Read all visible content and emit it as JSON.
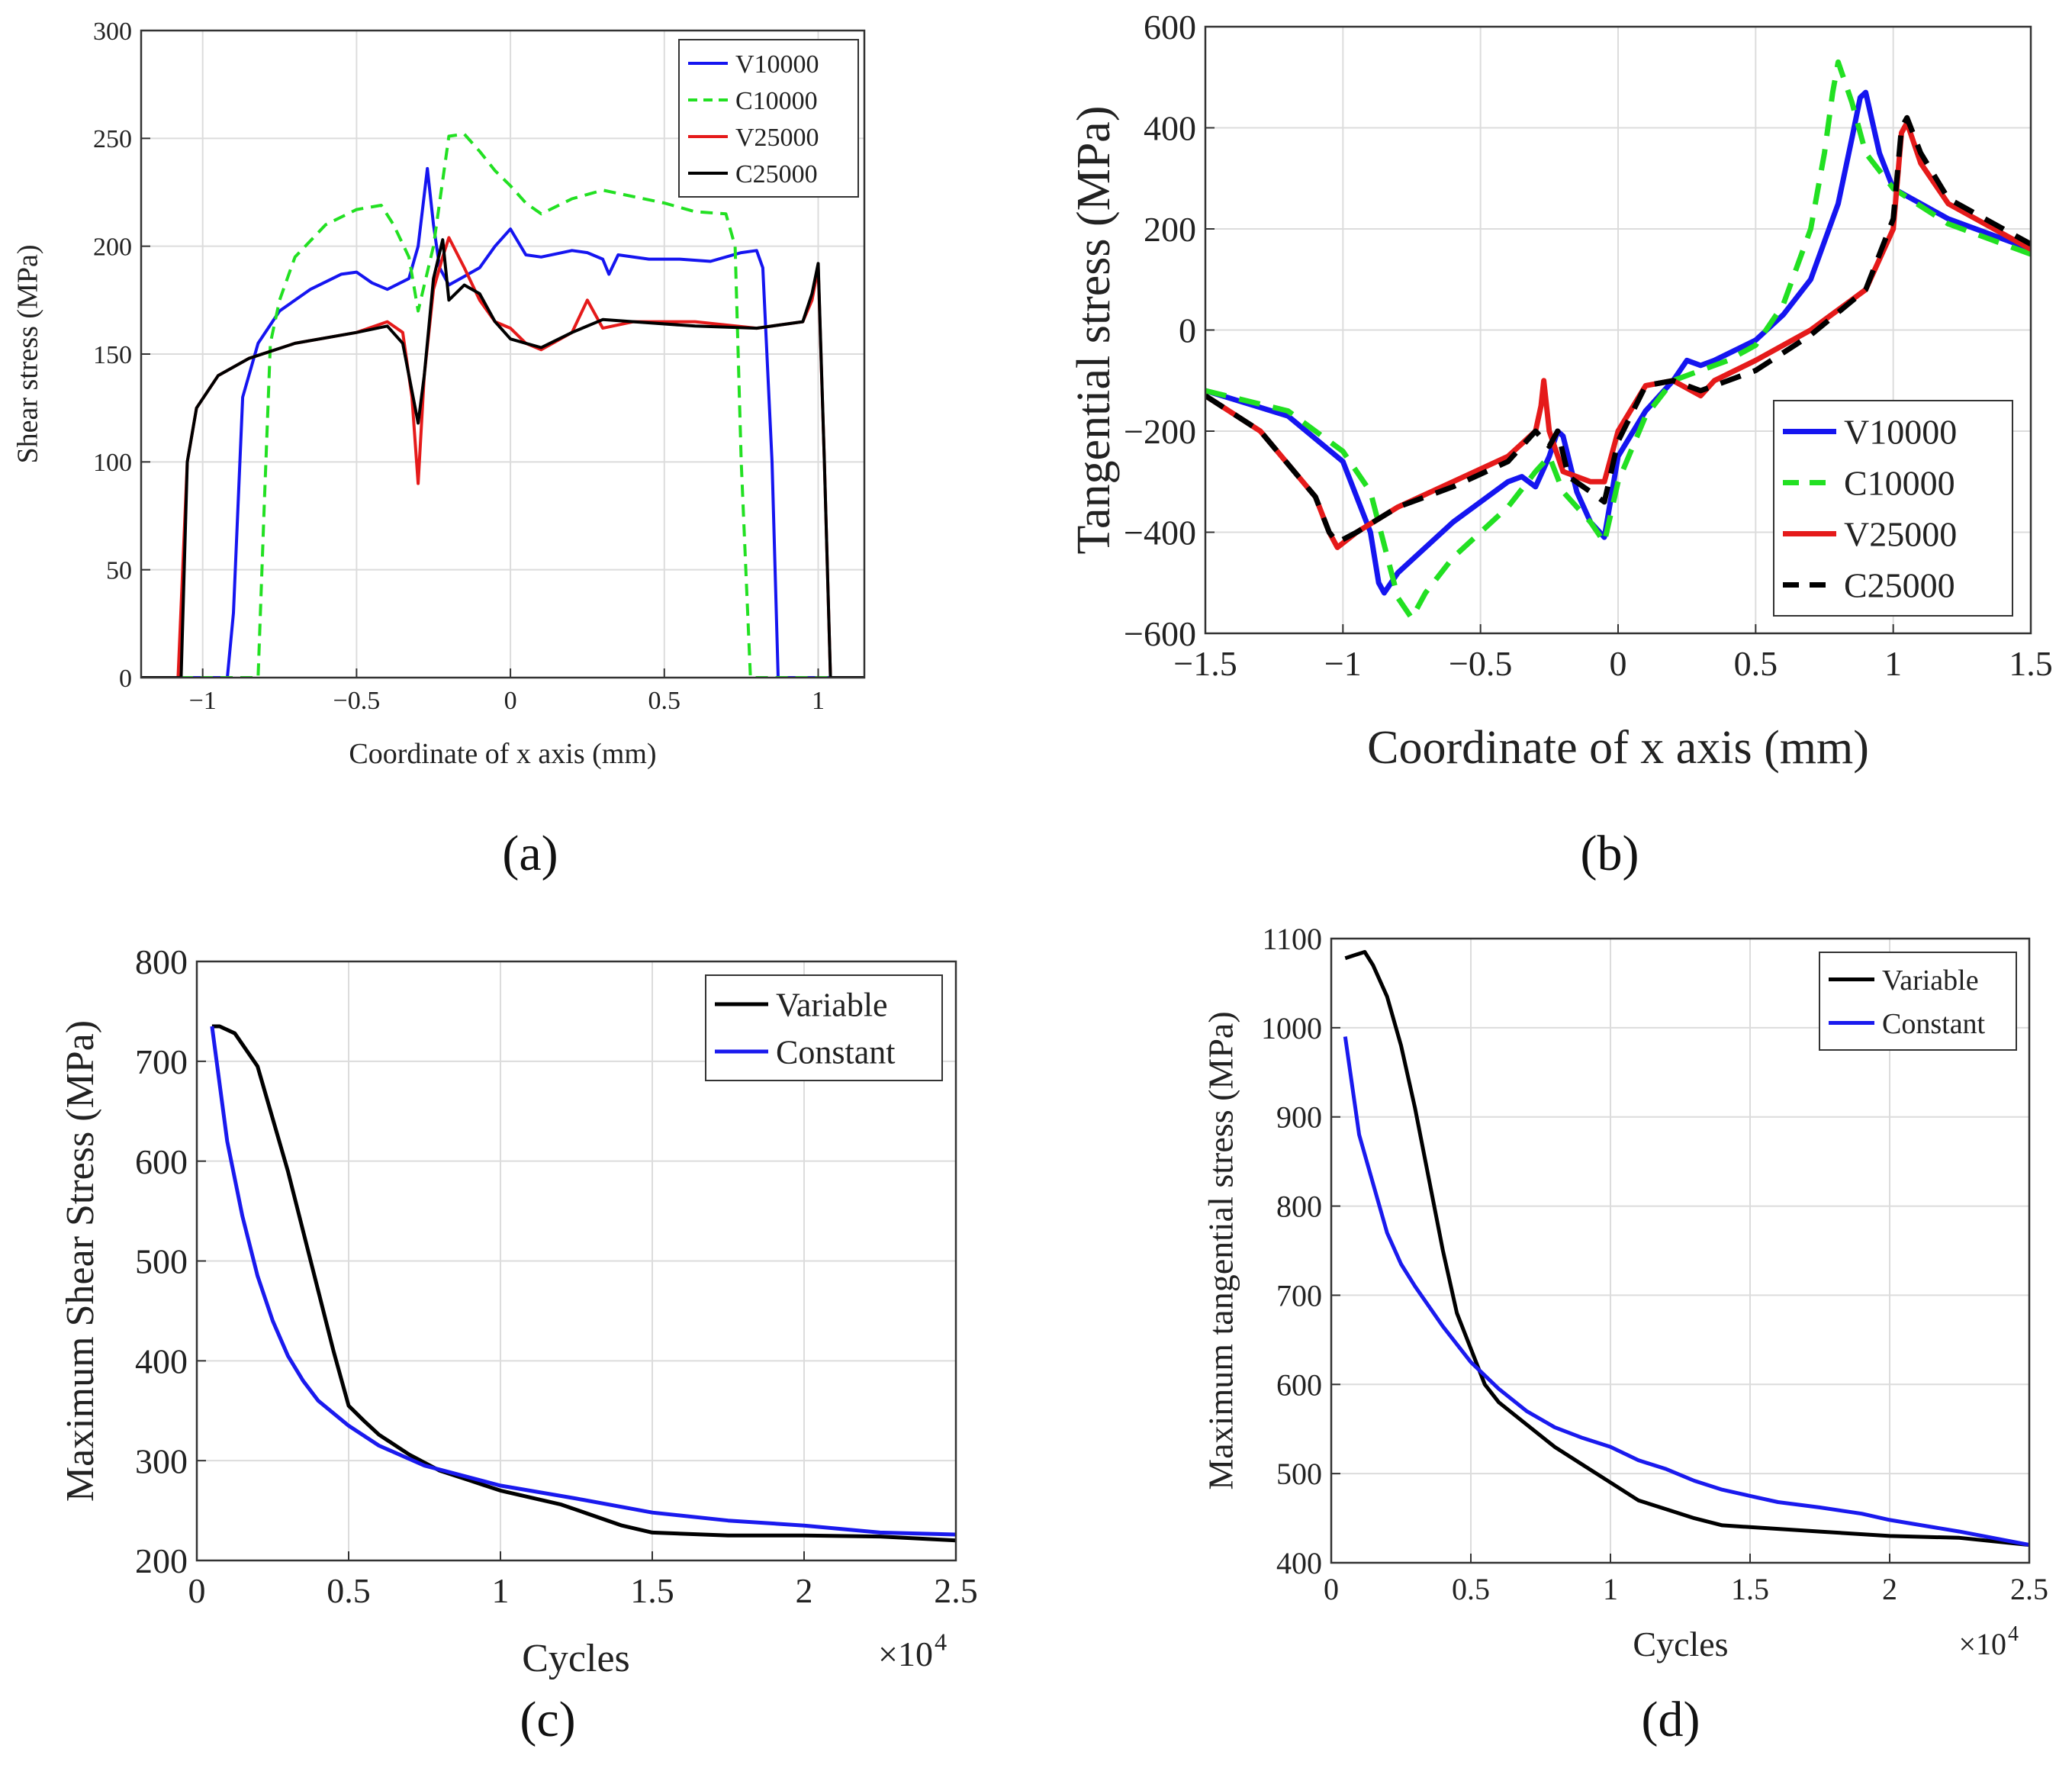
{
  "chart_data": [
    {
      "id": "a",
      "type": "line",
      "caption": "(a)",
      "title": "",
      "xlabel": "Coordinate of x axis (mm)",
      "ylabel": "Shear stress (MPa)",
      "xlim": [
        -1.2,
        1.15
      ],
      "ylim": [
        0,
        300
      ],
      "xticks": [
        -1,
        -0.5,
        0,
        0.5,
        1
      ],
      "xtick_labels": [
        "−1",
        "−0.5",
        "0",
        "0.5",
        "1"
      ],
      "yticks": [
        0,
        50,
        100,
        150,
        200,
        250,
        300
      ],
      "ytick_labels": [
        "0",
        "50",
        "100",
        "150",
        "200",
        "250",
        "300"
      ],
      "grid": true,
      "legend_position": "top-right",
      "series": [
        {
          "name": "V10000",
          "color": "#1515f0",
          "dash": "solid",
          "x": [
            -1.2,
            -0.92,
            -0.9,
            -0.87,
            -0.82,
            -0.75,
            -0.65,
            -0.55,
            -0.5,
            -0.45,
            -0.4,
            -0.33,
            -0.3,
            -0.27,
            -0.25,
            -0.23,
            -0.2,
            -0.15,
            -0.1,
            -0.05,
            0,
            0.05,
            0.1,
            0.2,
            0.25,
            0.3,
            0.32,
            0.35,
            0.45,
            0.55,
            0.65,
            0.75,
            0.8,
            0.82,
            0.85,
            0.87,
            0.9,
            1.15
          ],
          "y": [
            0,
            0,
            30,
            130,
            155,
            170,
            180,
            187,
            188,
            183,
            180,
            185,
            200,
            236,
            210,
            190,
            182,
            186,
            190,
            200,
            208,
            196,
            195,
            198,
            197,
            194,
            187,
            196,
            194,
            194,
            193,
            197,
            198,
            190,
            100,
            0,
            0,
            0
          ]
        },
        {
          "name": "C10000",
          "color": "#22e022",
          "dash": "dashed",
          "x": [
            -1.2,
            -0.82,
            -0.8,
            -0.78,
            -0.75,
            -0.7,
            -0.6,
            -0.5,
            -0.42,
            -0.38,
            -0.33,
            -0.3,
            -0.25,
            -0.2,
            -0.15,
            -0.1,
            -0.05,
            0,
            0.05,
            0.1,
            0.2,
            0.3,
            0.4,
            0.5,
            0.6,
            0.7,
            0.73,
            0.75,
            0.78,
            0.8,
            1.15
          ],
          "y": [
            0,
            0,
            80,
            155,
            175,
            195,
            210,
            217,
            219,
            210,
            195,
            170,
            200,
            251,
            252,
            244,
            235,
            228,
            220,
            215,
            222,
            226,
            223,
            220,
            216,
            215,
            200,
            100,
            0,
            0,
            0
          ]
        },
        {
          "name": "V25000",
          "color": "#e51a1a",
          "dash": "solid",
          "x": [
            -1.2,
            -1.08,
            -1.05,
            -1.02,
            -0.95,
            -0.85,
            -0.7,
            -0.5,
            -0.4,
            -0.35,
            -0.32,
            -0.3,
            -0.28,
            -0.25,
            -0.22,
            -0.2,
            -0.15,
            -0.1,
            -0.05,
            0,
            0.05,
            0.1,
            0.2,
            0.25,
            0.3,
            0.4,
            0.6,
            0.8,
            0.95,
            0.98,
            1,
            1.02,
            1.04,
            1.15
          ],
          "y": [
            0,
            0,
            100,
            125,
            140,
            148,
            155,
            160,
            165,
            160,
            130,
            90,
            140,
            180,
            195,
            204,
            190,
            175,
            165,
            162,
            155,
            152,
            160,
            175,
            162,
            165,
            165,
            162,
            165,
            175,
            190,
            100,
            0,
            0
          ]
        },
        {
          "name": "C25000",
          "color": "#000000",
          "dash": "solid",
          "x": [
            -1.2,
            -1.07,
            -1.05,
            -1.02,
            -0.95,
            -0.85,
            -0.7,
            -0.5,
            -0.4,
            -0.35,
            -0.3,
            -0.28,
            -0.25,
            -0.22,
            -0.2,
            -0.15,
            -0.1,
            -0.05,
            0,
            0.05,
            0.1,
            0.2,
            0.3,
            0.4,
            0.6,
            0.8,
            0.95,
            0.98,
            1,
            1.02,
            1.04,
            1.15
          ],
          "y": [
            0,
            0,
            100,
            125,
            140,
            148,
            155,
            160,
            163,
            155,
            118,
            140,
            185,
            203,
            175,
            182,
            178,
            165,
            157,
            155,
            153,
            160,
            166,
            165,
            163,
            162,
            165,
            178,
            192,
            100,
            0,
            0
          ]
        }
      ]
    },
    {
      "id": "b",
      "type": "line",
      "caption": "(b)",
      "title": "",
      "xlabel": "Coordinate of x axis (mm)",
      "ylabel": "Tangential stress (MPa)",
      "xlim": [
        -1.5,
        1.5
      ],
      "ylim": [
        -600,
        600
      ],
      "xticks": [
        -1.5,
        -1,
        -0.5,
        0,
        0.5,
        1,
        1.5
      ],
      "xtick_labels": [
        "−1.5",
        "−1",
        "−0.5",
        "0",
        "0.5",
        "1",
        "1.5"
      ],
      "yticks": [
        -600,
        -400,
        -200,
        0,
        200,
        400,
        600
      ],
      "ytick_labels": [
        "−600",
        "−400",
        "−200",
        "0",
        "200",
        "400",
        "600"
      ],
      "grid": true,
      "legend_position": "bottom-right",
      "series": [
        {
          "name": "V10000",
          "color": "#1515f0",
          "dash": "solid",
          "x": [
            -1.5,
            -1.2,
            -1,
            -0.9,
            -0.87,
            -0.85,
            -0.8,
            -0.6,
            -0.4,
            -0.35,
            -0.3,
            -0.25,
            -0.22,
            -0.2,
            -0.15,
            -0.1,
            -0.05,
            0,
            0.1,
            0.2,
            0.25,
            0.3,
            0.35,
            0.5,
            0.6,
            0.7,
            0.8,
            0.85,
            0.88,
            0.9,
            0.95,
            1,
            1.2,
            1.5
          ],
          "y": [
            -120,
            -170,
            -260,
            -400,
            -500,
            -520,
            -480,
            -380,
            -300,
            -290,
            -310,
            -250,
            -200,
            -210,
            -320,
            -380,
            -410,
            -250,
            -160,
            -100,
            -60,
            -70,
            -60,
            -20,
            30,
            100,
            250,
            380,
            460,
            470,
            350,
            280,
            220,
            160
          ]
        },
        {
          "name": "C10000",
          "color": "#22e022",
          "dash": "dashed",
          "x": [
            -1.5,
            -1.2,
            -1,
            -0.9,
            -0.8,
            -0.75,
            -0.7,
            -0.6,
            -0.5,
            -0.4,
            -0.3,
            -0.25,
            -0.2,
            -0.15,
            -0.1,
            -0.05,
            0,
            0.1,
            0.2,
            0.3,
            0.4,
            0.5,
            0.6,
            0.7,
            0.75,
            0.78,
            0.8,
            0.85,
            0.9,
            1,
            1.2,
            1.5
          ],
          "y": [
            -120,
            -160,
            -240,
            -320,
            -530,
            -570,
            -520,
            -450,
            -400,
            -350,
            -280,
            -250,
            -320,
            -350,
            -380,
            -420,
            -300,
            -170,
            -100,
            -80,
            -60,
            -30,
            50,
            200,
            350,
            470,
            530,
            450,
            350,
            280,
            210,
            150
          ]
        },
        {
          "name": "V25000",
          "color": "#e51a1a",
          "dash": "solid",
          "x": [
            -1.5,
            -1.3,
            -1.1,
            -1.05,
            -1.02,
            -0.95,
            -0.8,
            -0.6,
            -0.4,
            -0.3,
            -0.28,
            -0.27,
            -0.25,
            -0.2,
            -0.1,
            -0.05,
            0,
            0.1,
            0.2,
            0.3,
            0.35,
            0.5,
            0.7,
            0.9,
            1,
            1.03,
            1.05,
            1.1,
            1.2,
            1.5
          ],
          "y": [
            -130,
            -200,
            -330,
            -400,
            -430,
            -400,
            -350,
            -300,
            -250,
            -200,
            -150,
            -100,
            -200,
            -280,
            -300,
            -300,
            -200,
            -110,
            -100,
            -130,
            -100,
            -60,
            0,
            80,
            200,
            390,
            410,
            330,
            250,
            160
          ]
        },
        {
          "name": "C25000",
          "color": "#000000",
          "dash": "dashed",
          "x": [
            -1.5,
            -1.3,
            -1.1,
            -1.05,
            -1.02,
            -0.95,
            -0.8,
            -0.6,
            -0.4,
            -0.3,
            -0.25,
            -0.22,
            -0.18,
            -0.1,
            -0.05,
            0,
            0.1,
            0.2,
            0.3,
            0.35,
            0.5,
            0.7,
            0.9,
            1,
            1.03,
            1.05,
            1.1,
            1.2,
            1.5
          ],
          "y": [
            -130,
            -200,
            -330,
            -400,
            -420,
            -400,
            -350,
            -310,
            -260,
            -200,
            -230,
            -200,
            -290,
            -320,
            -340,
            -220,
            -110,
            -100,
            -120,
            -110,
            -80,
            -10,
            80,
            220,
            400,
            420,
            350,
            260,
            170
          ]
        }
      ]
    },
    {
      "id": "c",
      "type": "line",
      "caption": "(c)",
      "title": "",
      "xlabel": "Cycles",
      "ylabel": "Maximum Shear Stress (MPa)",
      "multiplier": "×10",
      "multiplier_exp": "4",
      "xlim": [
        0,
        2.5
      ],
      "ylim": [
        200,
        800
      ],
      "xticks": [
        0,
        0.5,
        1,
        1.5,
        2,
        2.5
      ],
      "xtick_labels": [
        "0",
        "0.5",
        "1",
        "1.5",
        "2",
        "2.5"
      ],
      "yticks": [
        200,
        300,
        400,
        500,
        600,
        700,
        800
      ],
      "ytick_labels": [
        "200",
        "300",
        "400",
        "500",
        "600",
        "700",
        "800"
      ],
      "grid": true,
      "legend_position": "top-right",
      "series": [
        {
          "name": "Variable",
          "color": "#000000",
          "dash": "solid",
          "x": [
            0.05,
            0.075,
            0.125,
            0.2,
            0.3,
            0.4,
            0.45,
            0.5,
            0.55,
            0.6,
            0.7,
            0.8,
            0.9,
            1,
            1.2,
            1.4,
            1.5,
            1.75,
            2,
            2.25,
            2.5
          ],
          "y": [
            735,
            735,
            728,
            695,
            590,
            470,
            410,
            355,
            340,
            326,
            306,
            290,
            280,
            270,
            256,
            235,
            228,
            225,
            225,
            224,
            220
          ]
        },
        {
          "name": "Constant",
          "color": "#1a1aee",
          "dash": "solid",
          "x": [
            0.05,
            0.1,
            0.15,
            0.2,
            0.25,
            0.3,
            0.35,
            0.4,
            0.5,
            0.6,
            0.75,
            1,
            1.25,
            1.5,
            1.75,
            2,
            2.25,
            2.5
          ],
          "y": [
            735,
            620,
            545,
            485,
            440,
            405,
            380,
            360,
            335,
            315,
            295,
            275,
            262,
            248,
            240,
            235,
            228,
            226
          ]
        }
      ]
    },
    {
      "id": "d",
      "type": "line",
      "caption": "(d)",
      "title": "",
      "xlabel": "Cycles",
      "ylabel": "Maximum tangential stress (MPa)",
      "multiplier": "×10",
      "multiplier_exp": "4",
      "xlim": [
        0,
        2.5
      ],
      "ylim": [
        400,
        1100
      ],
      "xticks": [
        0,
        0.5,
        1,
        1.5,
        2,
        2.5
      ],
      "xtick_labels": [
        "0",
        "0.5",
        "1",
        "1.5",
        "2",
        "2.5"
      ],
      "yticks": [
        400,
        500,
        600,
        700,
        800,
        900,
        1000,
        1100
      ],
      "ytick_labels": [
        "400",
        "500",
        "600",
        "700",
        "800",
        "900",
        "1000",
        "1100"
      ],
      "grid": true,
      "legend_position": "top-right",
      "series": [
        {
          "name": "Variable",
          "color": "#000000",
          "dash": "solid",
          "x": [
            0.05,
            0.12,
            0.15,
            0.2,
            0.25,
            0.3,
            0.35,
            0.4,
            0.45,
            0.5,
            0.55,
            0.6,
            0.7,
            0.8,
            0.9,
            1,
            1.1,
            1.2,
            1.3,
            1.4,
            1.5,
            1.75,
            2,
            2.25,
            2.5
          ],
          "y": [
            1078,
            1085,
            1070,
            1035,
            980,
            910,
            830,
            750,
            680,
            640,
            600,
            580,
            555,
            530,
            510,
            490,
            470,
            460,
            450,
            442,
            440,
            435,
            430,
            428,
            420
          ]
        },
        {
          "name": "Constant",
          "color": "#1a1aee",
          "dash": "solid",
          "x": [
            0.05,
            0.1,
            0.15,
            0.2,
            0.25,
            0.3,
            0.4,
            0.5,
            0.6,
            0.7,
            0.8,
            0.9,
            1,
            1.1,
            1.2,
            1.3,
            1.4,
            1.5,
            1.6,
            1.75,
            1.9,
            2,
            2.25,
            2.5
          ],
          "y": [
            990,
            880,
            825,
            770,
            735,
            710,
            665,
            625,
            595,
            570,
            552,
            540,
            530,
            515,
            505,
            492,
            482,
            475,
            468,
            462,
            455,
            448,
            435,
            420
          ]
        }
      ]
    }
  ]
}
